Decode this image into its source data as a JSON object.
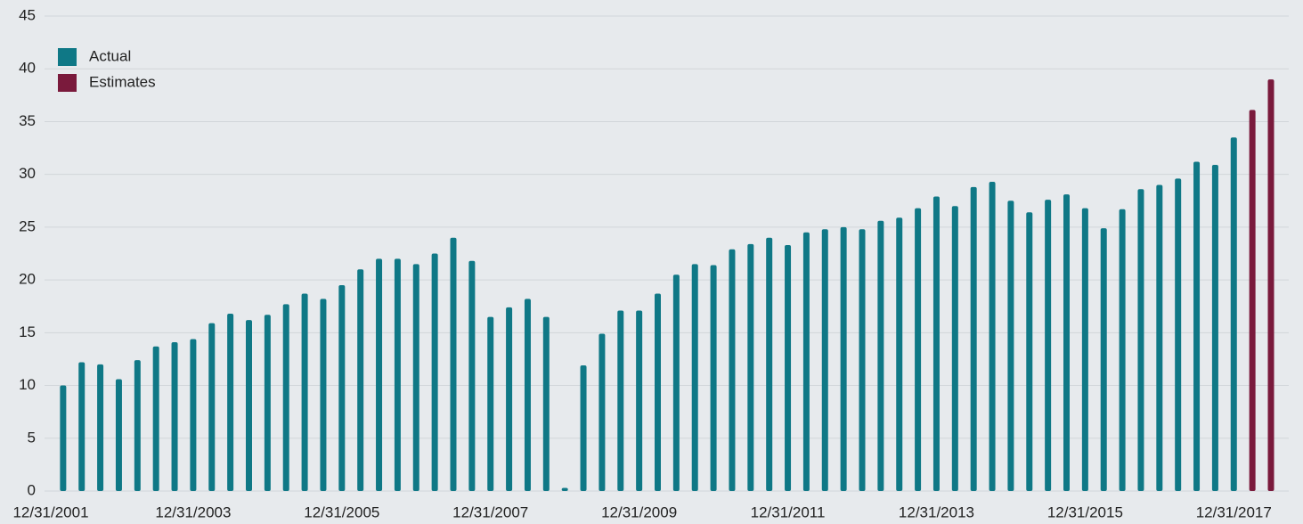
{
  "chart_data": {
    "type": "bar",
    "categories": [
      "12/31/2001",
      null,
      null,
      null,
      null,
      null,
      null,
      null,
      "12/31/2003",
      null,
      null,
      null,
      null,
      null,
      null,
      null,
      "12/31/2005",
      null,
      null,
      null,
      null,
      null,
      null,
      null,
      "12/31/2007",
      null,
      null,
      null,
      null,
      null,
      null,
      null,
      "12/31/2009",
      null,
      null,
      null,
      null,
      null,
      null,
      null,
      "12/31/2011",
      null,
      null,
      null,
      null,
      null,
      null,
      null,
      "12/31/2013",
      null,
      null,
      null,
      null,
      null,
      null,
      null,
      "12/31/2015",
      null,
      null,
      null,
      null,
      null,
      null,
      null,
      "12/31/2017",
      null,
      null
    ],
    "series": [
      {
        "name": "Actual",
        "color": "#0f7886",
        "values": [
          null,
          10.0,
          12.2,
          12.0,
          10.6,
          12.4,
          13.7,
          14.1,
          14.4,
          15.9,
          16.8,
          16.2,
          16.7,
          17.7,
          18.7,
          18.2,
          19.5,
          21.0,
          22.0,
          22.0,
          21.5,
          22.5,
          24.0,
          21.8,
          16.5,
          17.4,
          18.2,
          16.5,
          0.3,
          11.9,
          14.9,
          17.1,
          17.1,
          18.7,
          20.5,
          21.5,
          21.4,
          22.9,
          23.4,
          24.0,
          23.3,
          24.5,
          24.8,
          25.0,
          24.8,
          25.6,
          25.9,
          26.8,
          27.9,
          27.0,
          28.8,
          29.3,
          27.5,
          26.4,
          27.6,
          28.1,
          26.8,
          24.9,
          26.7,
          28.6,
          29.0,
          29.6,
          31.2,
          30.9,
          33.5,
          null,
          null
        ]
      },
      {
        "name": "Estimates",
        "color": "#7a1a3c",
        "values": [
          null,
          null,
          null,
          null,
          null,
          null,
          null,
          null,
          null,
          null,
          null,
          null,
          null,
          null,
          null,
          null,
          null,
          null,
          null,
          null,
          null,
          null,
          null,
          null,
          null,
          null,
          null,
          null,
          null,
          null,
          null,
          null,
          null,
          null,
          null,
          null,
          null,
          null,
          null,
          null,
          null,
          null,
          null,
          null,
          null,
          null,
          null,
          null,
          null,
          null,
          null,
          null,
          null,
          null,
          null,
          null,
          null,
          null,
          null,
          null,
          null,
          null,
          null,
          null,
          null,
          36.1,
          39.0
        ]
      }
    ],
    "ylim": [
      0,
      45
    ],
    "yticks": [
      0,
      5,
      10,
      15,
      20,
      25,
      30,
      35,
      40,
      45
    ],
    "grid": true,
    "legend": "upper left"
  }
}
